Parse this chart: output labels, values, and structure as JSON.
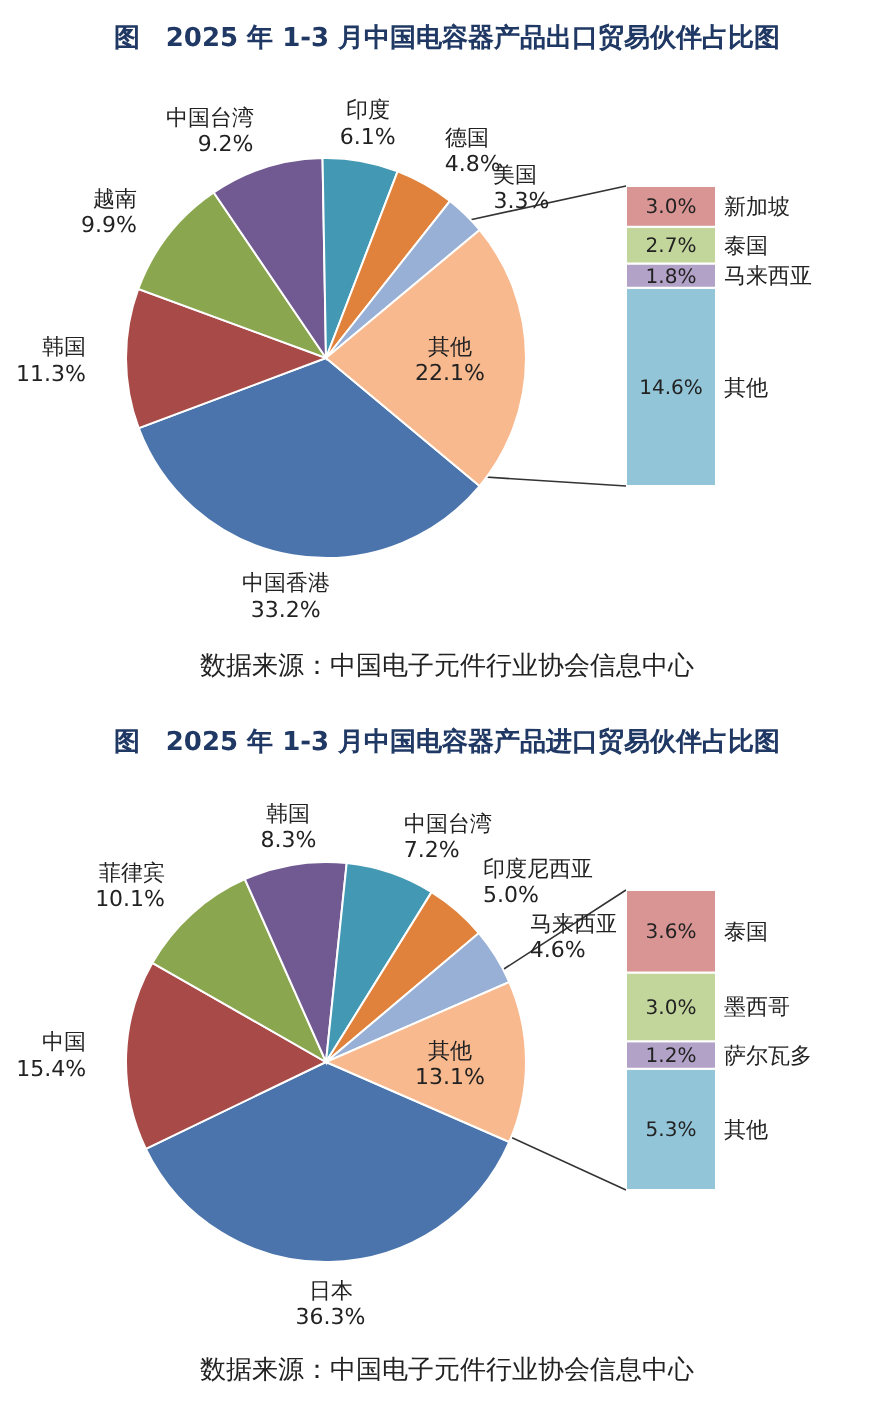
{
  "chart_data": [
    {
      "type": "pie",
      "title": "图　2025 年 1-3 月中国电容器产品出口贸易伙伴占比图",
      "categories": [
        "中国香港",
        "韩国",
        "越南",
        "中国台湾",
        "印度",
        "德国",
        "美国",
        "其他"
      ],
      "values": [
        33.2,
        11.3,
        9.9,
        9.2,
        6.1,
        4.8,
        3.3,
        22.1
      ],
      "value_labels": [
        "33.2%",
        "11.3%",
        "9.9%",
        "9.2%",
        "6.1%",
        "4.8%",
        "3.3%",
        "22.1%"
      ],
      "colors": [
        "#4a74ab",
        "#a84a48",
        "#8aa64f",
        "#715a92",
        "#4399b3",
        "#e0823b",
        "#98b0d6",
        "#f9b98f"
      ],
      "annotations": [
        "数据来源：中国电子元件行业协会信息中心"
      ],
      "legend": false
    },
    {
      "type": "bar",
      "stacked": true,
      "categories": [
        null
      ],
      "tick_labels": false,
      "series": [
        {
          "name": "其他",
          "color": "#92c5d8",
          "values": [
            14.6
          ],
          "value_labels": [
            "14.6%"
          ]
        },
        {
          "name": "马来西亚",
          "color": "#b2a2c7",
          "values": [
            1.8
          ],
          "value_labels": [
            "1.8%"
          ]
        },
        {
          "name": "泰国",
          "color": "#c2d69b",
          "values": [
            2.7
          ],
          "value_labels": [
            "2.7%"
          ]
        },
        {
          "name": "新加坡",
          "color": "#d99594",
          "values": [
            3.0
          ],
          "value_labels": [
            "3.0%"
          ]
        }
      ]
    },
    {
      "type": "pie",
      "title": "图　2025 年 1-3 月中国电容器产品进口贸易伙伴占比图",
      "categories": [
        "日本",
        "中国",
        "菲律宾",
        "韩国",
        "中国台湾",
        "印度尼西亚",
        "马来西亚",
        "其他"
      ],
      "values": [
        36.3,
        15.4,
        10.1,
        8.3,
        7.2,
        5.0,
        4.6,
        13.1
      ],
      "value_labels": [
        "36.3%",
        "15.4%",
        "10.1%",
        "8.3%",
        "7.2%",
        "5.0%",
        "4.6%",
        "13.1%"
      ],
      "colors": [
        "#4a74ab",
        "#a84a48",
        "#8aa64f",
        "#715a92",
        "#4399b3",
        "#e0823b",
        "#98b0d6",
        "#f9b98f"
      ],
      "annotations": [
        "数据来源：中国电子元件行业协会信息中心"
      ],
      "legend": false
    },
    {
      "type": "bar",
      "stacked": true,
      "categories": [
        null
      ],
      "tick_labels": false,
      "series": [
        {
          "name": "其他",
          "color": "#92c5d8",
          "values": [
            5.3
          ],
          "value_labels": [
            "5.3%"
          ]
        },
        {
          "name": "萨尔瓦多",
          "color": "#b2a2c7",
          "values": [
            1.2
          ],
          "value_labels": [
            "1.2%"
          ]
        },
        {
          "name": "墨西哥",
          "color": "#c2d69b",
          "values": [
            3.0
          ],
          "value_labels": [
            "3.0%"
          ]
        },
        {
          "name": "泰国",
          "color": "#d99594",
          "values": [
            3.6
          ],
          "value_labels": [
            "3.6%"
          ]
        }
      ]
    }
  ]
}
